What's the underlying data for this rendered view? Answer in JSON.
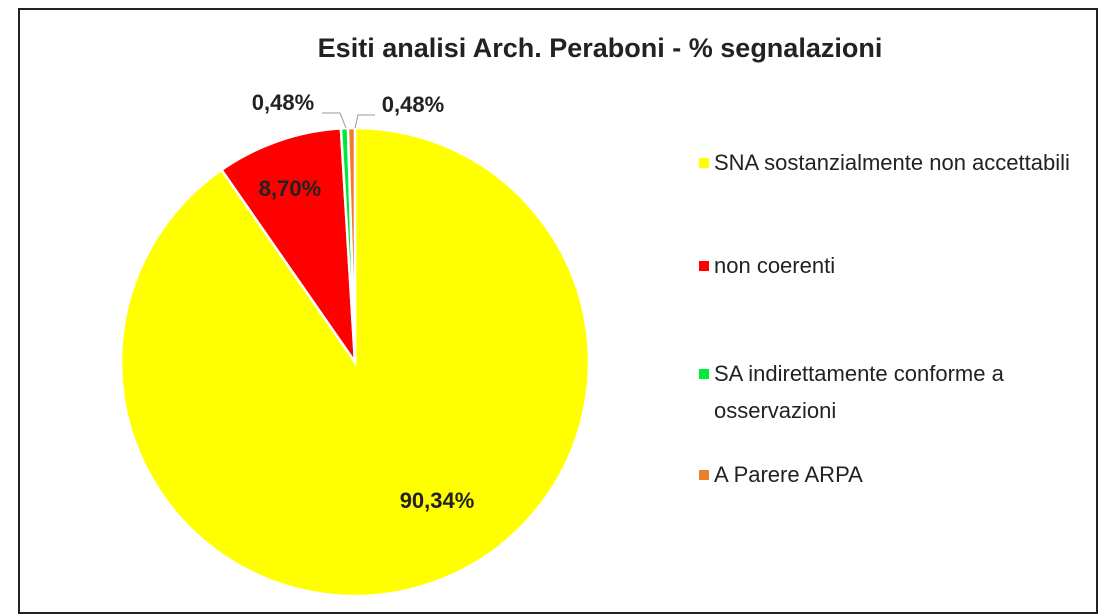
{
  "chart_data": {
    "type": "pie",
    "title": "Esiti analisi Arch. Peraboni - % segnalazioni",
    "categories": [
      "SNA sostanzialmente non accettabili",
      "non coerenti",
      "SA indirettamente conforme a osservazioni",
      "A Parere ARPA"
    ],
    "values": [
      90.34,
      8.7,
      0.48,
      0.48
    ],
    "value_labels": [
      "90,34%",
      "8,70%",
      "0,48%",
      "0,48%"
    ],
    "colors": [
      "#ffff00",
      "#ff0000",
      "#00e83a",
      "#ed7d31"
    ],
    "legend": "right"
  }
}
